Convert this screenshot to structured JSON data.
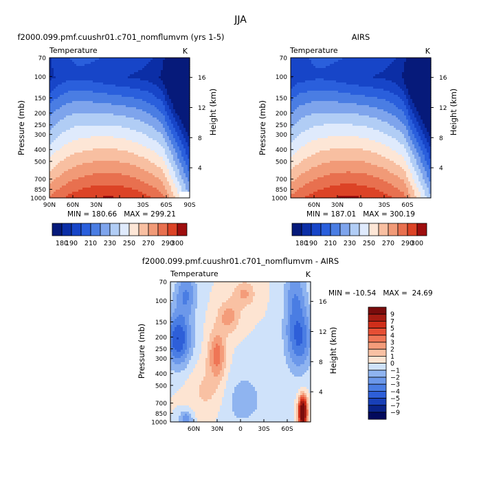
{
  "figure": {
    "title": "JJA",
    "colors": {
      "warm": [
        "#fde4d2",
        "#f9c1a3",
        "#f49c7a",
        "#ef7656",
        "#e64f34",
        "#cf2e1a",
        "#a61c12",
        "#7a0c0c"
      ],
      "cool": [
        "#cfe2fa",
        "#b1cdf5",
        "#8fb4f0",
        "#6c98ea",
        "#4a7de3",
        "#2e5fd8",
        "#1840b8",
        "#0a248a",
        "#020a5c"
      ]
    }
  },
  "chart_data": [
    {
      "id": "model",
      "type": "heatmap",
      "title": "f2000.099.pmf.cuushr01.c701_nomflumvm (yrs 1-5)",
      "variable_label": "Temperature",
      "units": "K",
      "ylabel": "Pressure (mb)",
      "y2label": "Height (km)",
      "pressure_ticks": [
        70,
        100,
        150,
        200,
        250,
        300,
        400,
        500,
        700,
        850,
        1000
      ],
      "height_ticks": [
        16,
        12,
        8,
        4
      ],
      "x_ticks": [
        "90N",
        "60N",
        "30N",
        "0",
        "30S",
        "60S",
        "90S"
      ],
      "x_tick_lats": [
        90,
        60,
        30,
        0,
        -30,
        -60,
        -90
      ],
      "xlim": [
        90,
        -90
      ],
      "stats": "MIN = 180.66   MAX = 299.21",
      "levels": [
        180,
        190,
        200,
        210,
        220,
        230,
        240,
        250,
        260,
        270,
        280,
        290,
        300
      ],
      "colorbar_labels": [
        "180",
        "190",
        "210",
        "230",
        "250",
        "270",
        "290",
        "300"
      ]
    },
    {
      "id": "obs",
      "type": "heatmap",
      "title": "AIRS",
      "variable_label": "Temperature",
      "units": "K",
      "ylabel": "Pressure (mb)",
      "y2label": "Height (km)",
      "pressure_ticks": [
        70,
        100,
        150,
        200,
        250,
        300,
        400,
        500,
        700,
        850,
        1000
      ],
      "height_ticks": [
        16,
        12,
        8,
        4
      ],
      "x_ticks": [
        "60N",
        "30N",
        "0",
        "30S",
        "60S"
      ],
      "x_tick_lats": [
        60,
        30,
        0,
        -30,
        -60
      ],
      "xlim": [
        90,
        -90
      ],
      "stats": "MIN = 187.01   MAX = 300.19",
      "levels": [
        180,
        190,
        200,
        210,
        220,
        230,
        240,
        250,
        260,
        270,
        280,
        290,
        300
      ],
      "colorbar_labels": [
        "180",
        "190",
        "210",
        "230",
        "250",
        "270",
        "290",
        "300"
      ]
    },
    {
      "id": "diff",
      "type": "heatmap",
      "title": "f2000.099.pmf.cuushr01.c701_nomflumvm - AIRS",
      "variable_label": "Temperature",
      "units": "K",
      "ylabel": "Pressure (mb)",
      "y2label": "Height (km)",
      "pressure_ticks": [
        70,
        100,
        150,
        200,
        250,
        300,
        400,
        500,
        700,
        850,
        1000
      ],
      "height_ticks": [
        16,
        12,
        8,
        4
      ],
      "x_ticks": [
        "60N",
        "30N",
        "0",
        "30S",
        "60S"
      ],
      "x_tick_lats": [
        60,
        30,
        0,
        -30,
        -60
      ],
      "xlim": [
        90,
        -90
      ],
      "stats": "MIN = -10.54   MAX =  24.69",
      "levels": [
        -9,
        -7,
        -5,
        -4,
        -3,
        -2,
        -1,
        0,
        1,
        2,
        3,
        4,
        5,
        7,
        9
      ],
      "colorbar_labels": [
        "9",
        "7",
        "5",
        "4",
        "3",
        "2",
        "1",
        "0",
        "−1",
        "−2",
        "−3",
        "−4",
        "−5",
        "−7",
        "−9"
      ]
    }
  ]
}
